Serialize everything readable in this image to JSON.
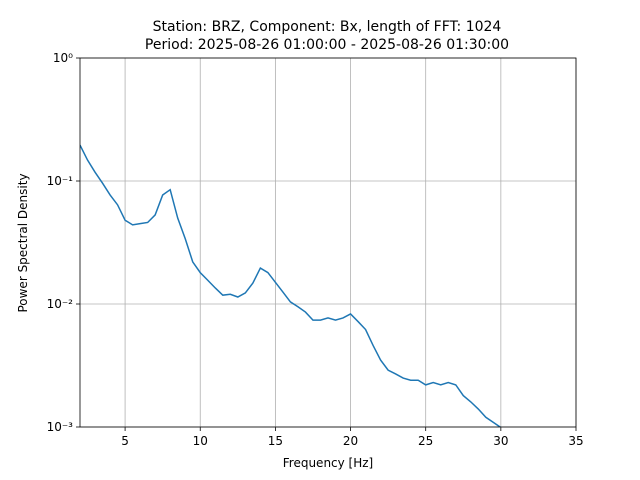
{
  "chart_data": {
    "type": "line",
    "title": "Station: BRZ, Component: Bx, length of FFT: 1024",
    "subtitle": "Period: 2025-08-26 01:00:00 - 2025-08-26 01:30:00",
    "x_label": "Frequency [Hz]",
    "y_label": "Power Spectral Density",
    "x": [
      2,
      2.5,
      3,
      3.5,
      4,
      4.5,
      5,
      5.5,
      6,
      6.5,
      7,
      7.5,
      8,
      8.5,
      9,
      9.5,
      10,
      10.5,
      11,
      11.5,
      12,
      12.5,
      13,
      13.5,
      14,
      14.5,
      15,
      15.5,
      16,
      16.5,
      17,
      17.5,
      18,
      18.5,
      19,
      19.5,
      20,
      20.5,
      21,
      21.5,
      22,
      22.5,
      23,
      23.5,
      24,
      24.5,
      25,
      25.5,
      26,
      26.5,
      27,
      27.5,
      28,
      28.5,
      29,
      29.5,
      30
    ],
    "values": [
      0.196,
      0.148,
      0.118,
      0.096,
      0.077,
      0.064,
      0.048,
      0.044,
      0.045,
      0.046,
      0.053,
      0.077,
      0.085,
      0.05,
      0.034,
      0.022,
      0.018,
      0.0156,
      0.0135,
      0.0118,
      0.012,
      0.0114,
      0.0123,
      0.0148,
      0.0196,
      0.018,
      0.015,
      0.0125,
      0.0104,
      0.0095,
      0.0086,
      0.0074,
      0.0074,
      0.0077,
      0.0074,
      0.0077,
      0.0083,
      0.0072,
      0.0062,
      0.0046,
      0.0035,
      0.0029,
      0.0027,
      0.0025,
      0.0024,
      0.0024,
      0.0022,
      0.0023,
      0.0022,
      0.0023,
      0.0022,
      0.0018,
      0.0016,
      0.0014,
      0.0012,
      0.00109,
      0.00099
    ],
    "color": "#1f77b4",
    "xlim": [
      2,
      35
    ],
    "xticks": [
      5,
      10,
      15,
      20,
      25,
      30,
      35
    ],
    "ylim": [
      0.001,
      1
    ],
    "log_y": true,
    "yticks": [
      {
        "value": 0.001,
        "label": "10⁻³"
      },
      {
        "value": 0.01,
        "label": "10⁻²"
      },
      {
        "value": 0.1,
        "label": "10⁻¹"
      },
      {
        "value": 1,
        "label": "10⁰"
      }
    ],
    "grid": true
  }
}
